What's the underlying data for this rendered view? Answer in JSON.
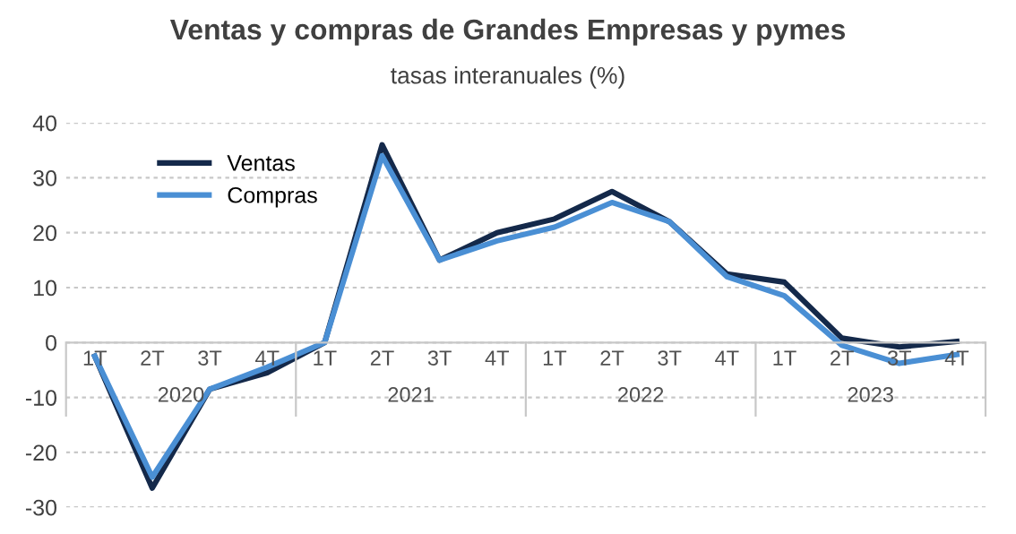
{
  "chart_data": {
    "type": "line",
    "title": "Ventas y compras de Grandes Empresas y pymes",
    "subtitle": "tasas interanuales (%)",
    "categories": [
      "1T",
      "2T",
      "3T",
      "4T",
      "1T",
      "2T",
      "3T",
      "4T",
      "1T",
      "2T",
      "3T",
      "4T",
      "1T",
      "2T",
      "3T",
      "4T"
    ],
    "annotations": [
      "2020",
      "2021",
      "2022",
      "2023"
    ],
    "series": [
      {
        "name": "Ventas",
        "color": "#14294a",
        "values": [
          -2.5,
          -26.5,
          -8.5,
          -5.5,
          0,
          36,
          15,
          20,
          22.5,
          27.5,
          22,
          12.5,
          11,
          0.8,
          -0.8,
          0.2
        ]
      },
      {
        "name": "Compras",
        "color": "#4a8fd4",
        "values": [
          -2.5,
          -24.5,
          -8.5,
          -4.5,
          0,
          34,
          15,
          18.5,
          21,
          25.5,
          22,
          12,
          8.5,
          -0.5,
          -3.8,
          -2.2
        ]
      }
    ],
    "ylim": [
      -30,
      40
    ],
    "yticks": [
      -30,
      -20,
      -10,
      0,
      10,
      20,
      30,
      40
    ],
    "grid": "y",
    "legend": "top left",
    "marker": "none",
    "line_style": "solid"
  }
}
